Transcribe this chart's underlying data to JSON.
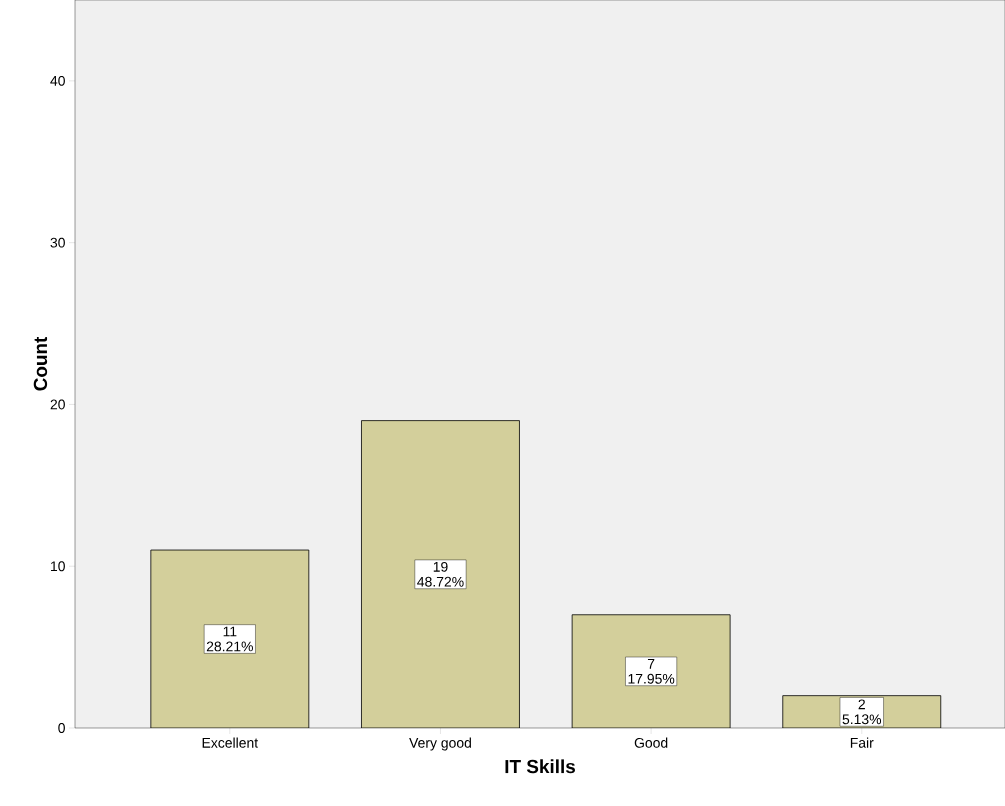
{
  "chart_data": {
    "type": "bar",
    "xlabel": "IT Skills",
    "ylabel": "Count",
    "categories": [
      "Excellent",
      "Very good",
      "Good",
      "Fair"
    ],
    "values": [
      11,
      19,
      7,
      2
    ],
    "color": "#d3cf9b",
    "data_labels": true,
    "annotations": [
      "28.21%",
      "48.72%",
      "17.95%",
      "5.13%"
    ],
    "ylim": [
      0,
      45
    ],
    "yticks": [
      0,
      10,
      20,
      30,
      40
    ],
    "grid": false
  }
}
